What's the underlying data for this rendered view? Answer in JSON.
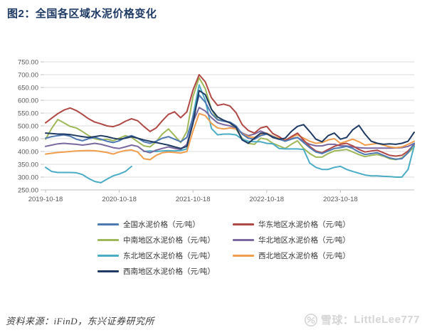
{
  "page": {
    "title": "图2：全国各区域水泥价格变化",
    "source_note": "资料来源：iFinD，东兴证券研究所"
  },
  "watermark": {
    "brand": "雪球",
    "separator": "：",
    "user": "LittleLee777"
  },
  "colors": {
    "title": "#1e3a64",
    "grid": "#dcdcdc",
    "axis": "#bfbfbf",
    "axis_text": "#595959",
    "watermark": "#d5d5d5"
  },
  "chart_data": {
    "type": "line",
    "title": "图2：全国各区域水泥价格变化",
    "unit": "元/吨",
    "grid": "horizontal",
    "legend_position": "bottom",
    "x_axis": {
      "start_date": "2019-10-18",
      "tick_labels": [
        "2019-10-18",
        "2020-10-18",
        "2021-10-18",
        "2022-10-18",
        "2023-10-18"
      ],
      "tick_months": [
        0,
        12,
        24,
        36,
        48
      ],
      "range_months": [
        0,
        60
      ]
    },
    "y_axis": {
      "ticks": [
        750,
        700,
        650,
        600,
        550,
        500,
        450,
        400,
        350,
        300,
        250
      ],
      "range": [
        250,
        750
      ],
      "decimals": 2
    },
    "draw_order": [
      2,
      4,
      3,
      5,
      1,
      0,
      6
    ],
    "series": [
      {
        "name": "全国水泥价格（元/吨）",
        "color": "#4e79b2",
        "values": [
          452,
          458,
          462,
          465,
          460,
          448,
          442,
          450,
          455,
          448,
          440,
          435,
          442,
          455,
          462,
          452,
          438,
          432,
          440,
          452,
          458,
          448,
          438,
          455,
          535,
          620,
          592,
          548,
          524,
          518,
          515,
          500,
          468,
          452,
          448,
          462,
          468,
          458,
          448,
          440,
          448,
          455,
          435,
          415,
          398,
          392,
          402,
          412,
          415,
          420,
          412,
          398,
          388,
          392,
          395,
          385,
          375,
          370,
          372,
          395,
          432
        ]
      },
      {
        "name": "华东地区水泥价格（元/吨）",
        "color": "#b04946",
        "values": [
          512,
          530,
          548,
          562,
          570,
          560,
          545,
          528,
          515,
          508,
          500,
          497,
          505,
          518,
          528,
          520,
          498,
          478,
          492,
          520,
          545,
          555,
          532,
          555,
          640,
          700,
          672,
          610,
          580,
          585,
          578,
          552,
          505,
          482,
          472,
          492,
          498,
          470,
          458,
          442,
          458,
          472,
          445,
          420,
          402,
          395,
          408,
          420,
          428,
          432,
          422,
          408,
          398,
          402,
          405,
          395,
          385,
          382,
          385,
          402,
          428
        ]
      },
      {
        "name": "中南地区水泥价格（元/吨）",
        "color": "#9eb85a",
        "values": [
          448,
          490,
          525,
          512,
          498,
          492,
          478,
          462,
          450,
          445,
          448,
          442,
          452,
          462,
          455,
          438,
          422,
          418,
          438,
          468,
          488,
          462,
          435,
          478,
          615,
          688,
          645,
          565,
          525,
          520,
          512,
          488,
          452,
          432,
          428,
          452,
          448,
          432,
          422,
          412,
          428,
          442,
          412,
          392,
          378,
          378,
          392,
          402,
          405,
          408,
          398,
          388,
          380,
          385,
          388,
          382,
          372,
          368,
          375,
          395,
          418
        ]
      },
      {
        "name": "华北地区水泥价格（元/吨）",
        "color": "#7b68a0",
        "values": [
          420,
          425,
          430,
          432,
          430,
          428,
          425,
          428,
          432,
          428,
          422,
          415,
          412,
          418,
          425,
          420,
          402,
          395,
          405,
          412,
          418,
          412,
          408,
          428,
          515,
          572,
          558,
          532,
          512,
          505,
          500,
          492,
          472,
          462,
          468,
          480,
          470,
          455,
          448,
          442,
          450,
          455,
          440,
          428,
          422,
          422,
          428,
          428,
          422,
          422,
          418,
          415,
          413,
          413,
          413,
          413,
          413,
          414,
          415,
          420,
          432
        ]
      },
      {
        "name": "东北地区水泥价格（元/吨）",
        "color": "#4bacc6",
        "values": [
          338,
          322,
          318,
          318,
          318,
          317,
          310,
          295,
          283,
          278,
          292,
          305,
          312,
          322,
          342,
          null,
          400,
          402,
          400,
          402,
          403,
          402,
          404,
          410,
          540,
          660,
          600,
          490,
          465,
          468,
          468,
          465,
          448,
          440,
          438,
          438,
          432,
          430,
          412,
          410,
          410,
          410,
          408,
          355,
          338,
          330,
          330,
          338,
          342,
          330,
          322,
          315,
          308,
          305,
          305,
          303,
          302,
          300,
          300,
          330,
          422
        ]
      },
      {
        "name": "西北地区水泥价格（元/吨）",
        "color": "#f09e4d",
        "values": [
          390,
          393,
          396,
          398,
          400,
          402,
          403,
          404,
          403,
          400,
          396,
          390,
          398,
          404,
          406,
          398,
          372,
          368,
          385,
          395,
          398,
          396,
          394,
          400,
          480,
          548,
          540,
          510,
          492,
          488,
          492,
          488,
          470,
          458,
          455,
          468,
          472,
          460,
          452,
          445,
          455,
          465,
          452,
          440,
          432,
          435,
          445,
          450,
          432,
          440,
          448,
          438,
          425,
          428,
          432,
          425,
          418,
          415,
          418,
          428,
          440
        ]
      },
      {
        "name": "西南地区水泥价格（元/吨）",
        "color": "#1f3a63",
        "values": [
          472,
          470,
          468,
          468,
          466,
          462,
          458,
          455,
          458,
          462,
          458,
          452,
          448,
          452,
          458,
          452,
          445,
          440,
          435,
          430,
          425,
          418,
          412,
          420,
          510,
          638,
          622,
          565,
          535,
          522,
          512,
          495,
          445,
          432,
          452,
          472,
          470,
          455,
          448,
          452,
          478,
          498,
          505,
          478,
          448,
          438,
          462,
          472,
          448,
          455,
          485,
          502,
          468,
          440,
          432,
          428,
          430,
          428,
          432,
          440,
          475
        ]
      }
    ]
  }
}
